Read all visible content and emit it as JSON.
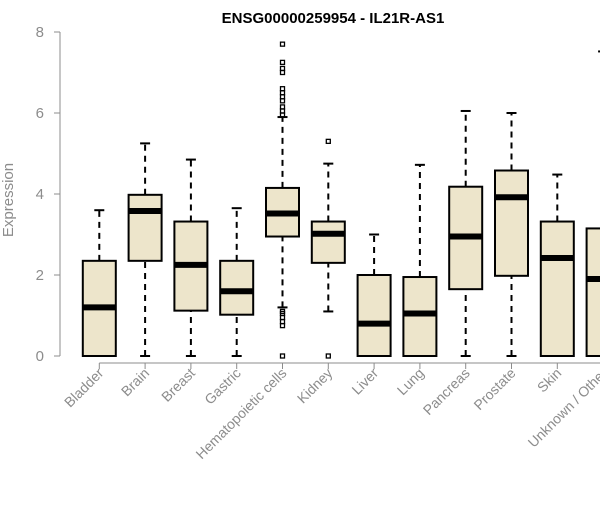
{
  "chart_data": {
    "type": "box",
    "title": "ENSG00000259954 - IL21R-AS1",
    "ylabel": "Expression",
    "xlabel": "",
    "ylim": [
      0,
      8
    ],
    "yticks": [
      0,
      2,
      4,
      6,
      8
    ],
    "colors": {
      "box_fill": "#ede5cb",
      "stroke": "#000000",
      "axis": "#8c8c8c",
      "title": "#000000"
    },
    "categories": [
      "Bladder",
      "Brain",
      "Breast",
      "Gastric",
      "Hematopoietic cells",
      "Kidney",
      "Liver",
      "Lung",
      "Pancreas",
      "Prostate",
      "Skin",
      "Unknown / Other"
    ],
    "boxes": [
      {
        "name": "Bladder",
        "min": 0,
        "q1": 0,
        "median": 1.2,
        "q3": 2.35,
        "max": 3.6,
        "outliers": []
      },
      {
        "name": "Brain",
        "min": 0,
        "q1": 2.35,
        "median": 3.58,
        "q3": 3.98,
        "max": 5.25,
        "outliers": []
      },
      {
        "name": "Breast",
        "min": 0,
        "q1": 1.12,
        "median": 2.25,
        "q3": 3.32,
        "max": 4.85,
        "outliers": []
      },
      {
        "name": "Gastric",
        "min": 0,
        "q1": 1.02,
        "median": 1.6,
        "q3": 2.35,
        "max": 3.65,
        "outliers": []
      },
      {
        "name": "Hematopoietic cells",
        "min": 1.2,
        "q1": 2.95,
        "median": 3.52,
        "q3": 4.15,
        "max": 5.9,
        "outliers": [
          0,
          0.75,
          0.85,
          0.95,
          1.05,
          1.1,
          5.95,
          6.05,
          6.15,
          6.3,
          6.4,
          6.5,
          6.6,
          7.0,
          7.1,
          7.25,
          7.7
        ]
      },
      {
        "name": "Kidney",
        "min": 1.1,
        "q1": 2.3,
        "median": 3.02,
        "q3": 3.32,
        "max": 4.75,
        "outliers": [
          0,
          5.3
        ]
      },
      {
        "name": "Liver",
        "min": 0,
        "q1": 0,
        "median": 0.8,
        "q3": 2.0,
        "max": 3.0,
        "outliers": []
      },
      {
        "name": "Lung",
        "min": 0,
        "q1": 0,
        "median": 1.05,
        "q3": 1.95,
        "max": 4.72,
        "outliers": []
      },
      {
        "name": "Pancreas",
        "min": 0,
        "q1": 1.65,
        "median": 2.95,
        "q3": 4.18,
        "max": 6.05,
        "outliers": []
      },
      {
        "name": "Prostate",
        "min": 0,
        "q1": 1.98,
        "median": 3.92,
        "q3": 4.58,
        "max": 6.0,
        "outliers": []
      },
      {
        "name": "Skin",
        "min": 0,
        "q1": 0,
        "median": 2.42,
        "q3": 3.32,
        "max": 4.48,
        "outliers": []
      },
      {
        "name": "Unknown / Other",
        "min": 0,
        "q1": 0,
        "median": 1.9,
        "q3": 3.15,
        "max": 7.52,
        "outliers": []
      }
    ]
  }
}
